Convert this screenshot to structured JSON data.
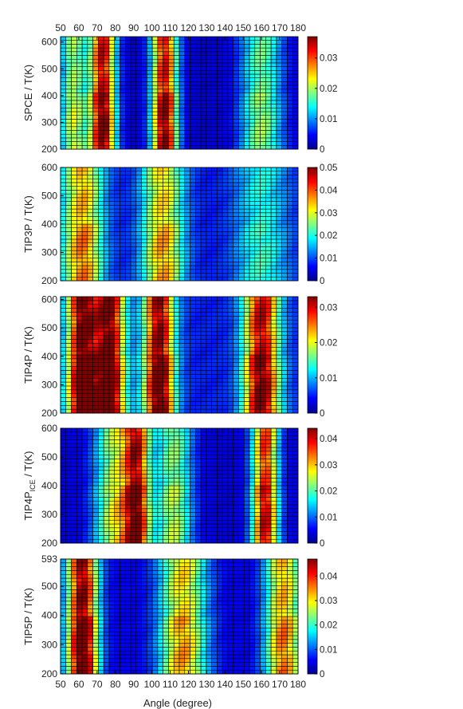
{
  "figure": {
    "xlabel": "Angle (degree)",
    "x_ticks": [
      "50",
      "60",
      "70",
      "80",
      "90",
      "100",
      "110",
      "120",
      "130",
      "140",
      "150",
      "160",
      "170",
      "180"
    ]
  },
  "chart_data": [
    {
      "type": "heatmap",
      "model": "SPCE",
      "ylabel": "SPCE / T(K)",
      "xlim": [
        50,
        180
      ],
      "ylim": [
        200,
        620
      ],
      "y_ticks": [
        200,
        300,
        400,
        500,
        600
      ],
      "colorbar": {
        "min": 0,
        "max": 0.037,
        "ticks": [
          "0",
          "0.01",
          "0.02",
          "0.03"
        ]
      },
      "angle_peaks": [
        {
          "angle": 57,
          "width": 5,
          "amp": 0.018
        },
        {
          "angle": 73,
          "width": 5,
          "amp": 0.034
        },
        {
          "angle": 107,
          "width": 5,
          "amp": 0.033
        },
        {
          "angle": 160,
          "width": 8,
          "amp": 0.016
        }
      ],
      "background": 0.003
    },
    {
      "type": "heatmap",
      "model": "TIP3P",
      "ylabel": "TIP3P / T(K)",
      "xlim": [
        50,
        180
      ],
      "ylim": [
        200,
        600
      ],
      "y_ticks": [
        200,
        300,
        400,
        500,
        600
      ],
      "colorbar": {
        "min": 0,
        "max": 0.05,
        "ticks": [
          "0",
          "0.01",
          "0.02",
          "0.03",
          "0.04",
          "0.05"
        ]
      },
      "angle_peaks": [
        {
          "angle": 62,
          "width": 8,
          "amp": 0.03
        },
        {
          "angle": 106,
          "width": 8,
          "amp": 0.028
        },
        {
          "angle": 160,
          "width": 10,
          "amp": 0.014
        }
      ],
      "background": 0.007
    },
    {
      "type": "heatmap",
      "model": "TIP4P",
      "ylabel": "TIP4P / T(K)",
      "xlim": [
        50,
        180
      ],
      "ylim": [
        200,
        610
      ],
      "y_ticks": [
        200,
        300,
        400,
        500,
        600
      ],
      "colorbar": {
        "min": 0,
        "max": 0.033,
        "ticks": [
          "0",
          "0.01",
          "0.02",
          "0.03"
        ]
      },
      "angle_peaks": [
        {
          "angle": 62,
          "width": 6,
          "amp": 0.031
        },
        {
          "angle": 77,
          "width": 6,
          "amp": 0.03
        },
        {
          "angle": 104,
          "width": 6,
          "amp": 0.03
        },
        {
          "angle": 160,
          "width": 7,
          "amp": 0.028
        }
      ],
      "background": 0.005
    },
    {
      "type": "heatmap",
      "model": "TIP4P_ICE",
      "ylabel_main": "TIP4P",
      "ylabel_sub": "ICE",
      "ylabel_tail": " / T(K)",
      "xlim": [
        50,
        180
      ],
      "ylim": [
        200,
        600
      ],
      "y_ticks": [
        200,
        300,
        400,
        500,
        600
      ],
      "colorbar": {
        "min": 0,
        "max": 0.044,
        "ticks": [
          "0",
          "0.01",
          "0.02",
          "0.03",
          "0.04"
        ]
      },
      "angle_peaks": [
        {
          "angle": 80,
          "width": 8,
          "amp": 0.022
        },
        {
          "angle": 92,
          "width": 5,
          "amp": 0.034
        },
        {
          "angle": 112,
          "width": 7,
          "amp": 0.02
        },
        {
          "angle": 162,
          "width": 5,
          "amp": 0.036
        }
      ],
      "background": 0.004
    },
    {
      "type": "heatmap",
      "model": "TIP5P",
      "ylabel": "TIP5P / T(K)",
      "xlim": [
        50,
        180
      ],
      "ylim": [
        200,
        593
      ],
      "y_ticks": [
        200,
        300,
        400,
        500,
        593
      ],
      "colorbar": {
        "min": 0,
        "max": 0.047,
        "ticks": [
          "0",
          "0.01",
          "0.02",
          "0.03",
          "0.04"
        ]
      },
      "angle_peaks": [
        {
          "angle": 62,
          "width": 6,
          "amp": 0.045
        },
        {
          "angle": 117,
          "width": 9,
          "amp": 0.028
        },
        {
          "angle": 172,
          "width": 7,
          "amp": 0.03
        }
      ],
      "background": 0.005
    }
  ]
}
